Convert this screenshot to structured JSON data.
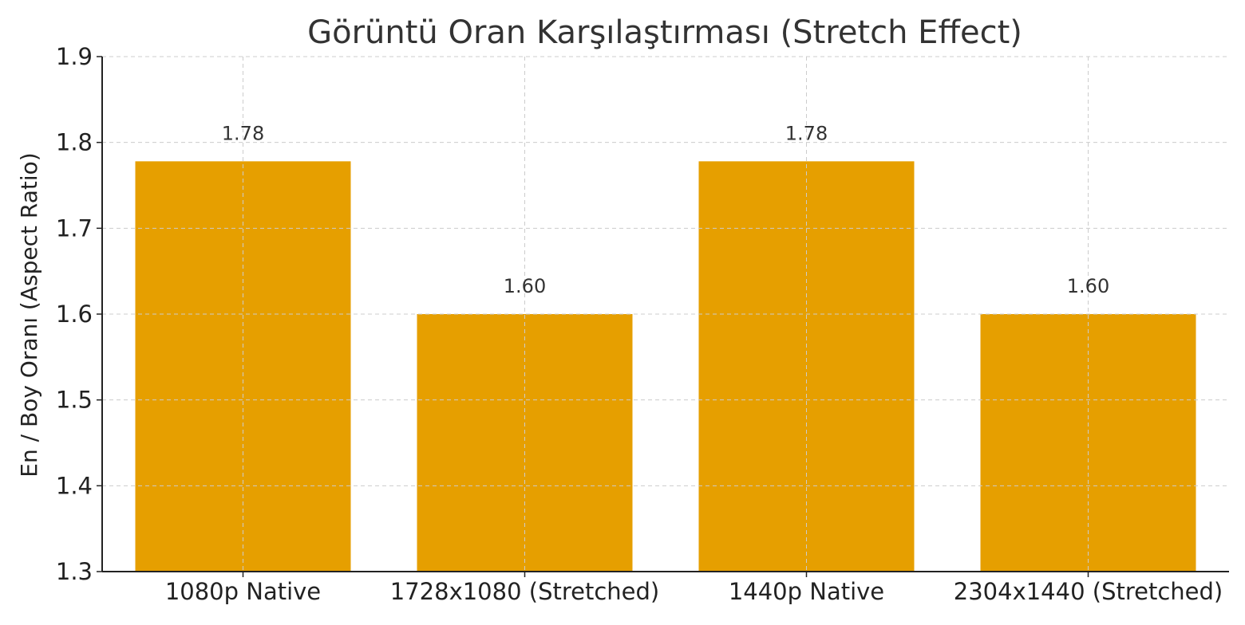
{
  "chart_data": {
    "type": "bar",
    "title": "Görüntü Oran Karşılaştırması (Stretch Effect)",
    "xlabel": "",
    "ylabel": "En / Boy Oranı (Aspect Ratio)",
    "categories": [
      "1080p Native",
      "1728x1080 (Stretched)",
      "1440p Native",
      "2304x1440 (Stretched)"
    ],
    "values": [
      1.778,
      1.6,
      1.778,
      1.6
    ],
    "data_labels": [
      "1.78",
      "1.60",
      "1.78",
      "1.60"
    ],
    "ylim": [
      1.3,
      1.9
    ],
    "yticks": [
      1.3,
      1.4,
      1.5,
      1.6,
      1.7,
      1.8,
      1.9
    ],
    "ytick_labels": [
      "1.3",
      "1.4",
      "1.5",
      "1.6",
      "1.7",
      "1.8",
      "1.9"
    ],
    "grid": true,
    "legend": "none",
    "colors": {
      "bar": "#E69F00",
      "grid": "#cccccc",
      "axis": "#222222",
      "text": "#222222",
      "title": "#333333"
    }
  }
}
